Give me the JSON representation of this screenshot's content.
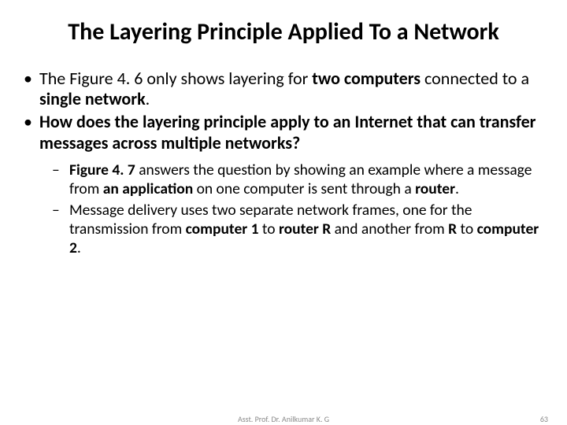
{
  "title": "The Layering Principle Applied To a Network",
  "bullets": {
    "a": {
      "t1": "The Figure 4. 6 ",
      "t2": "only shows layering for ",
      "t3": "two computers ",
      "t4": "connected to a ",
      "t5": "single network",
      "t6": "."
    },
    "b": {
      "t1": "How does the layering principle apply to an Internet that can transfer messages across multiple networks?"
    }
  },
  "sub": {
    "a": {
      "t1": "Figure 4. 7 ",
      "t2": "answers the question by showing an example where a message from ",
      "t3": "an application ",
      "t4": "on one computer is sent through a ",
      "t5": "router",
      "t6": "."
    },
    "b": {
      "t1": "Message delivery uses two separate network frames, one for the transmission from ",
      "t2": "computer 1 ",
      "t3": "to ",
      "t4": "router R ",
      "t5": "and another from ",
      "t6": "R ",
      "t7": "to ",
      "t8": "computer 2",
      "t9": "."
    }
  },
  "footer": {
    "author": "Asst. Prof. Dr. Anilkumar K. G",
    "page": "63"
  },
  "colors": {
    "text": "#000000",
    "footer": "#8a8a8a",
    "background": "#ffffff"
  },
  "typography": {
    "title_fontsize": 30,
    "bullet_fontsize": 22,
    "subbullet_fontsize": 19.5,
    "footer_fontsize": 10,
    "font_family": "Calibri"
  }
}
